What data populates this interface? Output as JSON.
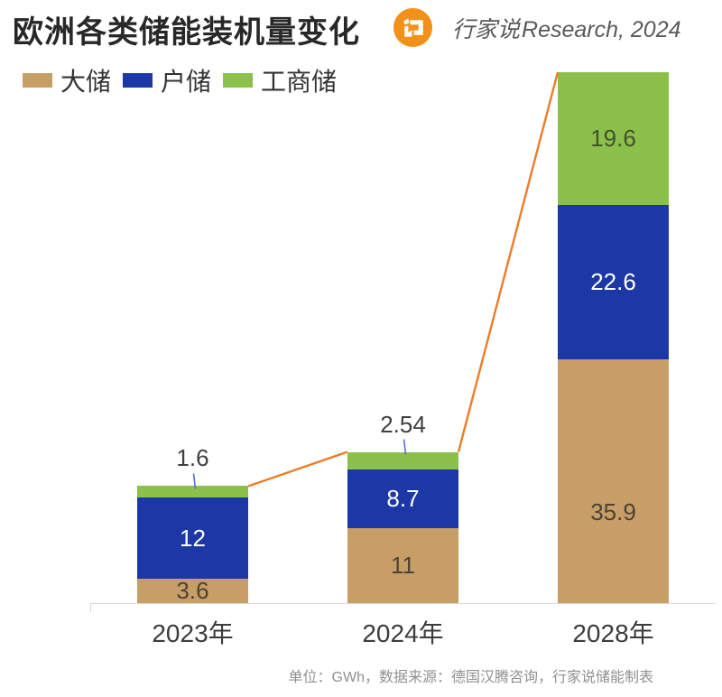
{
  "header": {
    "title": "欧洲各类储能装机量变化",
    "brand_cn": "行家说",
    "brand_en": "Research, 2024",
    "logo_color": "#F39019"
  },
  "legend": {
    "items": [
      {
        "label": "大储",
        "color": "#C79E66"
      },
      {
        "label": "户储",
        "color": "#1B38A6"
      },
      {
        "label": "工商储",
        "color": "#8BC04A"
      }
    ]
  },
  "chart_data": {
    "type": "bar",
    "subtype": "stacked-bar-with-trend-line",
    "title": "欧洲各类储能装机量变化",
    "unit": "GWh",
    "categories": [
      "2023年",
      "2024年",
      "2028年"
    ],
    "series": [
      {
        "name": "大储",
        "color": "#C79E66",
        "values": [
          3.6,
          11,
          35.9
        ],
        "labels": [
          "3.6",
          "11",
          "35.9"
        ],
        "label_color": "#4C4236",
        "label_dy": [
          0,
          0,
          34
        ]
      },
      {
        "name": "户储",
        "color": "#1B38A6",
        "values": [
          12,
          8.7,
          22.6
        ],
        "labels": [
          "12",
          "8.7",
          "22.6"
        ],
        "label_color": "#FFFFFF",
        "label_dy": [
          0,
          0,
          0
        ]
      },
      {
        "name": "工商储",
        "color": "#8BC04A",
        "values": [
          1.6,
          2.54,
          19.6
        ],
        "labels": [
          "1.6",
          "2.54",
          "19.6"
        ],
        "label_color": "#44512D",
        "label_dy": [
          0,
          0,
          0
        ],
        "callout_indices": [
          0,
          1
        ]
      }
    ],
    "totals": [
      17.2,
      22.24,
      78.1
    ],
    "trend_line_color": "#ED7D28",
    "callout_leader_color": "#5B6FC5",
    "axis_color": "#D8D8D8",
    "ylim": [
      0,
      80
    ],
    "grid": false,
    "legend_position": "top-left"
  },
  "footer": {
    "note": "单位：GWh，数据来源：德国汉腾咨询，行家说储能制表"
  }
}
